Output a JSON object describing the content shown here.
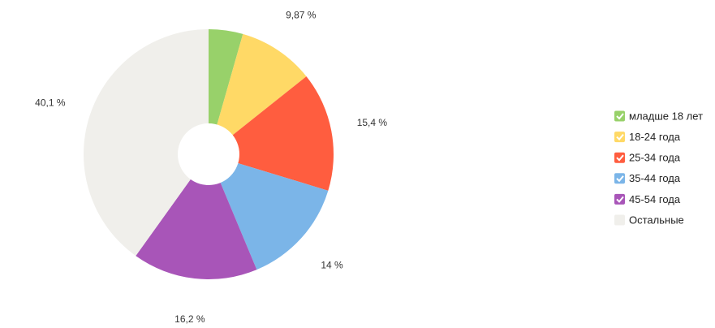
{
  "chart_data": {
    "type": "pie",
    "categories": [
      "младше 18 лет",
      "18-24 года",
      "25-34 года",
      "35-44 года",
      "45-54 года",
      "Остальные"
    ],
    "values": [
      4.43,
      9.87,
      15.4,
      14,
      16.2,
      40.1
    ],
    "value_labels": [
      null,
      "9,87 %",
      "15,4 %",
      "14 %",
      "16,2 %",
      "40,1 %"
    ],
    "colors": [
      "#98d16a",
      "#ffd966",
      "#ff5d3f",
      "#7bb5e8",
      "#a855b8",
      "#f0efeb"
    ],
    "legend": "right"
  }
}
